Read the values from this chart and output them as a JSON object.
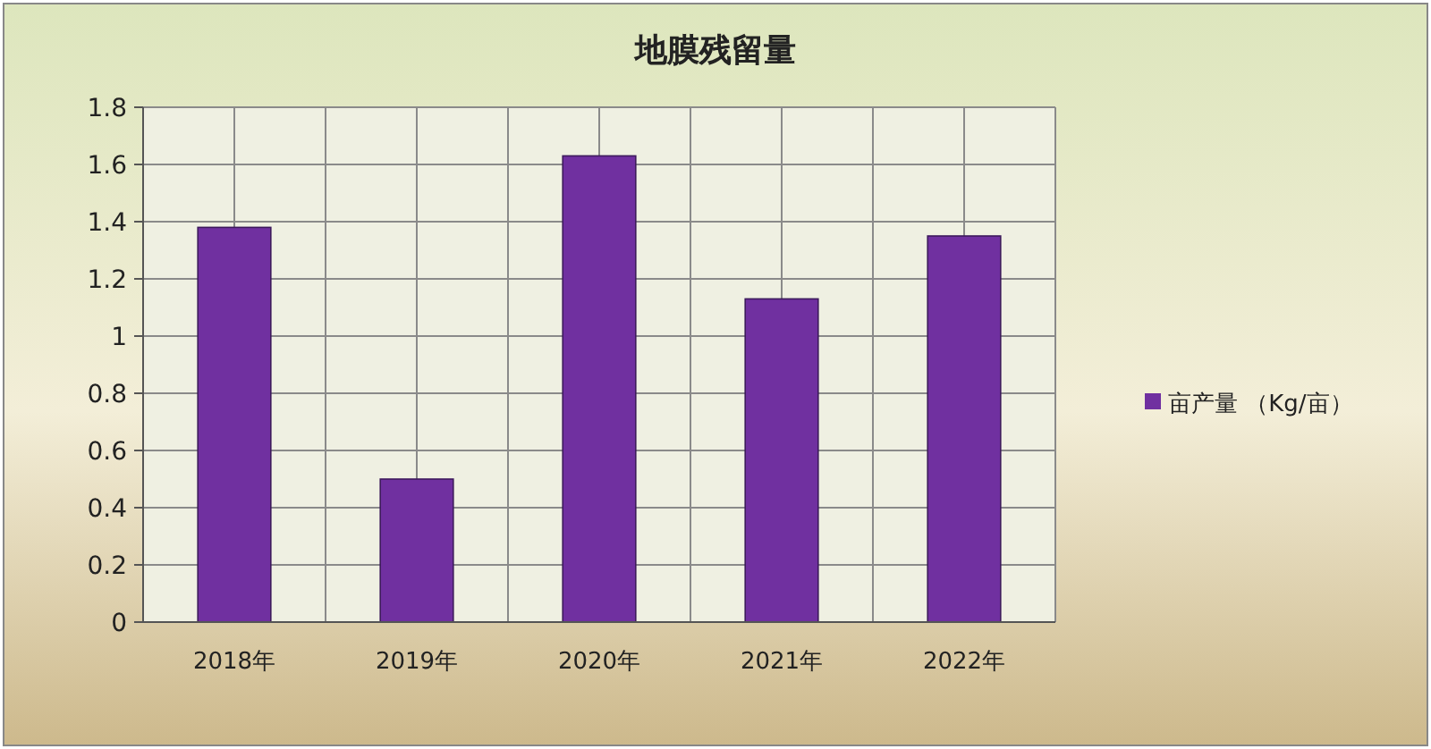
{
  "chart_data": {
    "type": "bar",
    "title": "地膜残留量",
    "categories": [
      "2018年",
      "2019年",
      "2020年",
      "2021年",
      "2022年"
    ],
    "series": [
      {
        "name": "亩产量 （Kg/亩）",
        "color": "#7030a0",
        "values": [
          1.38,
          0.5,
          1.63,
          1.13,
          1.35
        ]
      }
    ],
    "ylim": [
      0,
      1.8
    ],
    "yticks": [
      0,
      0.2,
      0.4,
      0.6,
      0.8,
      1,
      1.2,
      1.4,
      1.6,
      1.8
    ],
    "grid": true,
    "legend": "right"
  }
}
